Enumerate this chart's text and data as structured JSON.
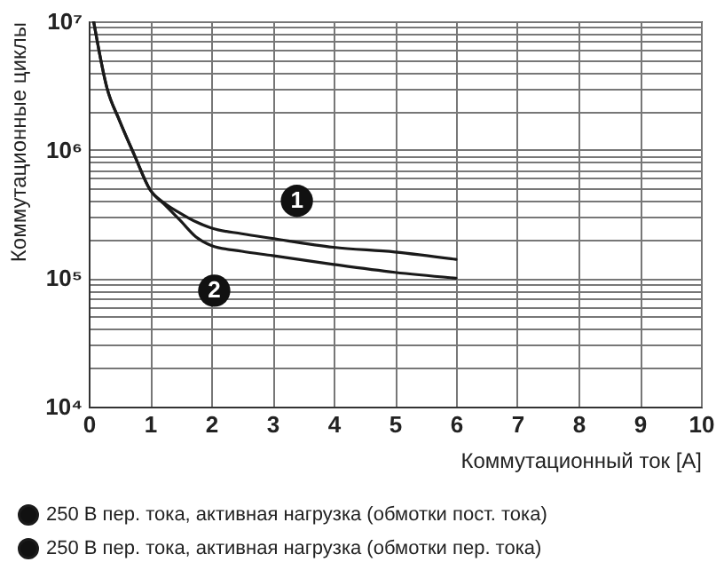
{
  "chart_data": {
    "type": "line",
    "xlabel": "Коммутационный ток [A]",
    "ylabel": "Коммутационные циклы",
    "series": [
      {
        "name": "250 В пер. тока, активная нагрузка (обмотки пост. тока)",
        "color": "#1a1a1a",
        "x": [
          0.08,
          0.3,
          0.5,
          0.75,
          1,
          1.25,
          1.5,
          1.75,
          2,
          2.5,
          3,
          4,
          5,
          6
        ],
        "values": [
          10000000,
          3000000,
          1700000,
          900000,
          490000,
          380000,
          320000,
          275000,
          246000,
          222000,
          204000,
          174000,
          160000,
          140000
        ]
      },
      {
        "name": "250 В пер. тока, активная нагрузка (обмотки пер. тока)",
        "color": "#1a1a1a",
        "x": [
          0.08,
          0.3,
          0.5,
          0.75,
          1,
          1.25,
          1.5,
          1.75,
          2,
          2.5,
          3,
          4,
          5,
          6
        ],
        "values": [
          10000000,
          3000000,
          1700000,
          900000,
          490000,
          370000,
          280000,
          210000,
          180000,
          162000,
          150000,
          128000,
          111000,
          100000
        ]
      }
    ],
    "annotations": [
      {
        "text": "1",
        "x": 3.4,
        "y": 400000
      },
      {
        "text": "2",
        "x": 2.05,
        "y": 80000
      }
    ],
    "xlim": [
      0,
      10
    ],
    "xticks": [
      0,
      1,
      2,
      3,
      4,
      5,
      6,
      7,
      8,
      9,
      10
    ],
    "ylim": [
      10000,
      10000000
    ],
    "log": true,
    "yticks": [
      {
        "value": 10000,
        "label": "10⁴"
      },
      {
        "value": 20000,
        "label": null
      },
      {
        "value": 30000,
        "label": null
      },
      {
        "value": 40000,
        "label": null
      },
      {
        "value": 50000,
        "label": null
      },
      {
        "value": 60000,
        "label": null
      },
      {
        "value": 70000,
        "label": null
      },
      {
        "value": 80000,
        "label": null
      },
      {
        "value": 90000,
        "label": null
      },
      {
        "value": 100000,
        "label": "10⁵"
      },
      {
        "value": 200000,
        "label": null
      },
      {
        "value": 300000,
        "label": null
      },
      {
        "value": 400000,
        "label": null
      },
      {
        "value": 500000,
        "label": null
      },
      {
        "value": 600000,
        "label": null
      },
      {
        "value": 700000,
        "label": null
      },
      {
        "value": 800000,
        "label": null
      },
      {
        "value": 900000,
        "label": null
      },
      {
        "value": 1000000,
        "label": "10⁶"
      },
      {
        "value": 2000000,
        "label": null
      },
      {
        "value": 3000000,
        "label": null
      },
      {
        "value": 4000000,
        "label": null
      },
      {
        "value": 5000000,
        "label": null
      },
      {
        "value": 6000000,
        "label": null
      },
      {
        "value": 7000000,
        "label": null
      },
      {
        "value": 8000000,
        "label": null
      },
      {
        "value": 9000000,
        "label": null
      },
      {
        "value": 10000000,
        "label": "10⁷"
      }
    ],
    "grid": true,
    "legend": "bottom",
    "marker": "none",
    "line_style": "solid"
  }
}
